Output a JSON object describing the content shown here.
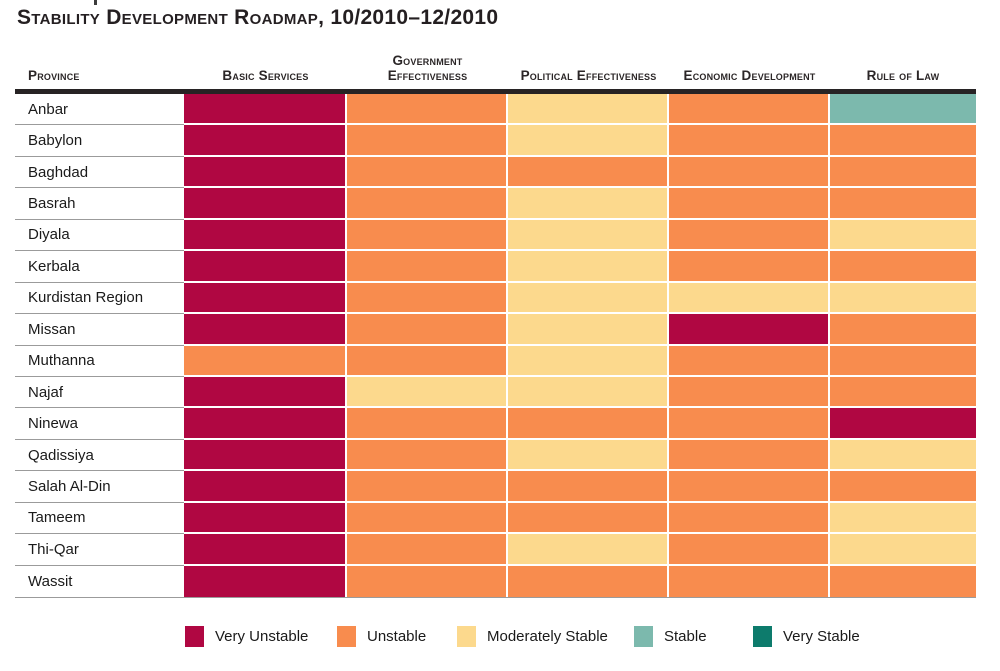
{
  "title": "Stability Development Roadmap, 10/2010–12/2010",
  "chart_data": {
    "type": "heatmap",
    "columns": [
      "Province",
      "Basic Services",
      "Government Effectiveness",
      "Political Effectiveness",
      "Economic Development",
      "Rule of Law"
    ],
    "rows": [
      "Anbar",
      "Babylon",
      "Baghdad",
      "Basrah",
      "Diyala",
      "Kerbala",
      "Kurdistan Region",
      "Missan",
      "Muthanna",
      "Najaf",
      "Ninewa",
      "Qadissiya",
      "Salah Al-Din",
      "Tameem",
      "Thi-Qar",
      "Wassit"
    ],
    "values": [
      [
        "very-unstable",
        "unstable",
        "moderately-stable",
        "unstable",
        "stable"
      ],
      [
        "very-unstable",
        "unstable",
        "moderately-stable",
        "unstable",
        "unstable"
      ],
      [
        "very-unstable",
        "unstable",
        "unstable",
        "unstable",
        "unstable"
      ],
      [
        "very-unstable",
        "unstable",
        "moderately-stable",
        "unstable",
        "unstable"
      ],
      [
        "very-unstable",
        "unstable",
        "moderately-stable",
        "unstable",
        "moderately-stable"
      ],
      [
        "very-unstable",
        "unstable",
        "moderately-stable",
        "unstable",
        "unstable"
      ],
      [
        "very-unstable",
        "unstable",
        "moderately-stable",
        "moderately-stable",
        "moderately-stable"
      ],
      [
        "very-unstable",
        "unstable",
        "moderately-stable",
        "very-unstable",
        "unstable"
      ],
      [
        "unstable",
        "unstable",
        "moderately-stable",
        "unstable",
        "unstable"
      ],
      [
        "very-unstable",
        "moderately-stable",
        "moderately-stable",
        "unstable",
        "unstable"
      ],
      [
        "very-unstable",
        "unstable",
        "unstable",
        "unstable",
        "very-unstable"
      ],
      [
        "very-unstable",
        "unstable",
        "moderately-stable",
        "unstable",
        "moderately-stable"
      ],
      [
        "very-unstable",
        "unstable",
        "unstable",
        "unstable",
        "unstable"
      ],
      [
        "very-unstable",
        "unstable",
        "unstable",
        "unstable",
        "moderately-stable"
      ],
      [
        "very-unstable",
        "unstable",
        "moderately-stable",
        "unstable",
        "moderately-stable"
      ],
      [
        "very-unstable",
        "unstable",
        "unstable",
        "unstable",
        "unstable"
      ]
    ],
    "legend_position": "bottom"
  },
  "legend": {
    "items": [
      {
        "key": "very-unstable",
        "label": "Very Unstable",
        "color": "#B00742"
      },
      {
        "key": "unstable",
        "label": "Unstable",
        "color": "#F88C4E"
      },
      {
        "key": "moderately-stable",
        "label": "Moderately Stable",
        "color": "#FCD98D"
      },
      {
        "key": "stable",
        "label": "Stable",
        "color": "#7CB9AD"
      },
      {
        "key": "very-stable",
        "label": "Very Stable",
        "color": "#0D7B6C"
      }
    ]
  }
}
